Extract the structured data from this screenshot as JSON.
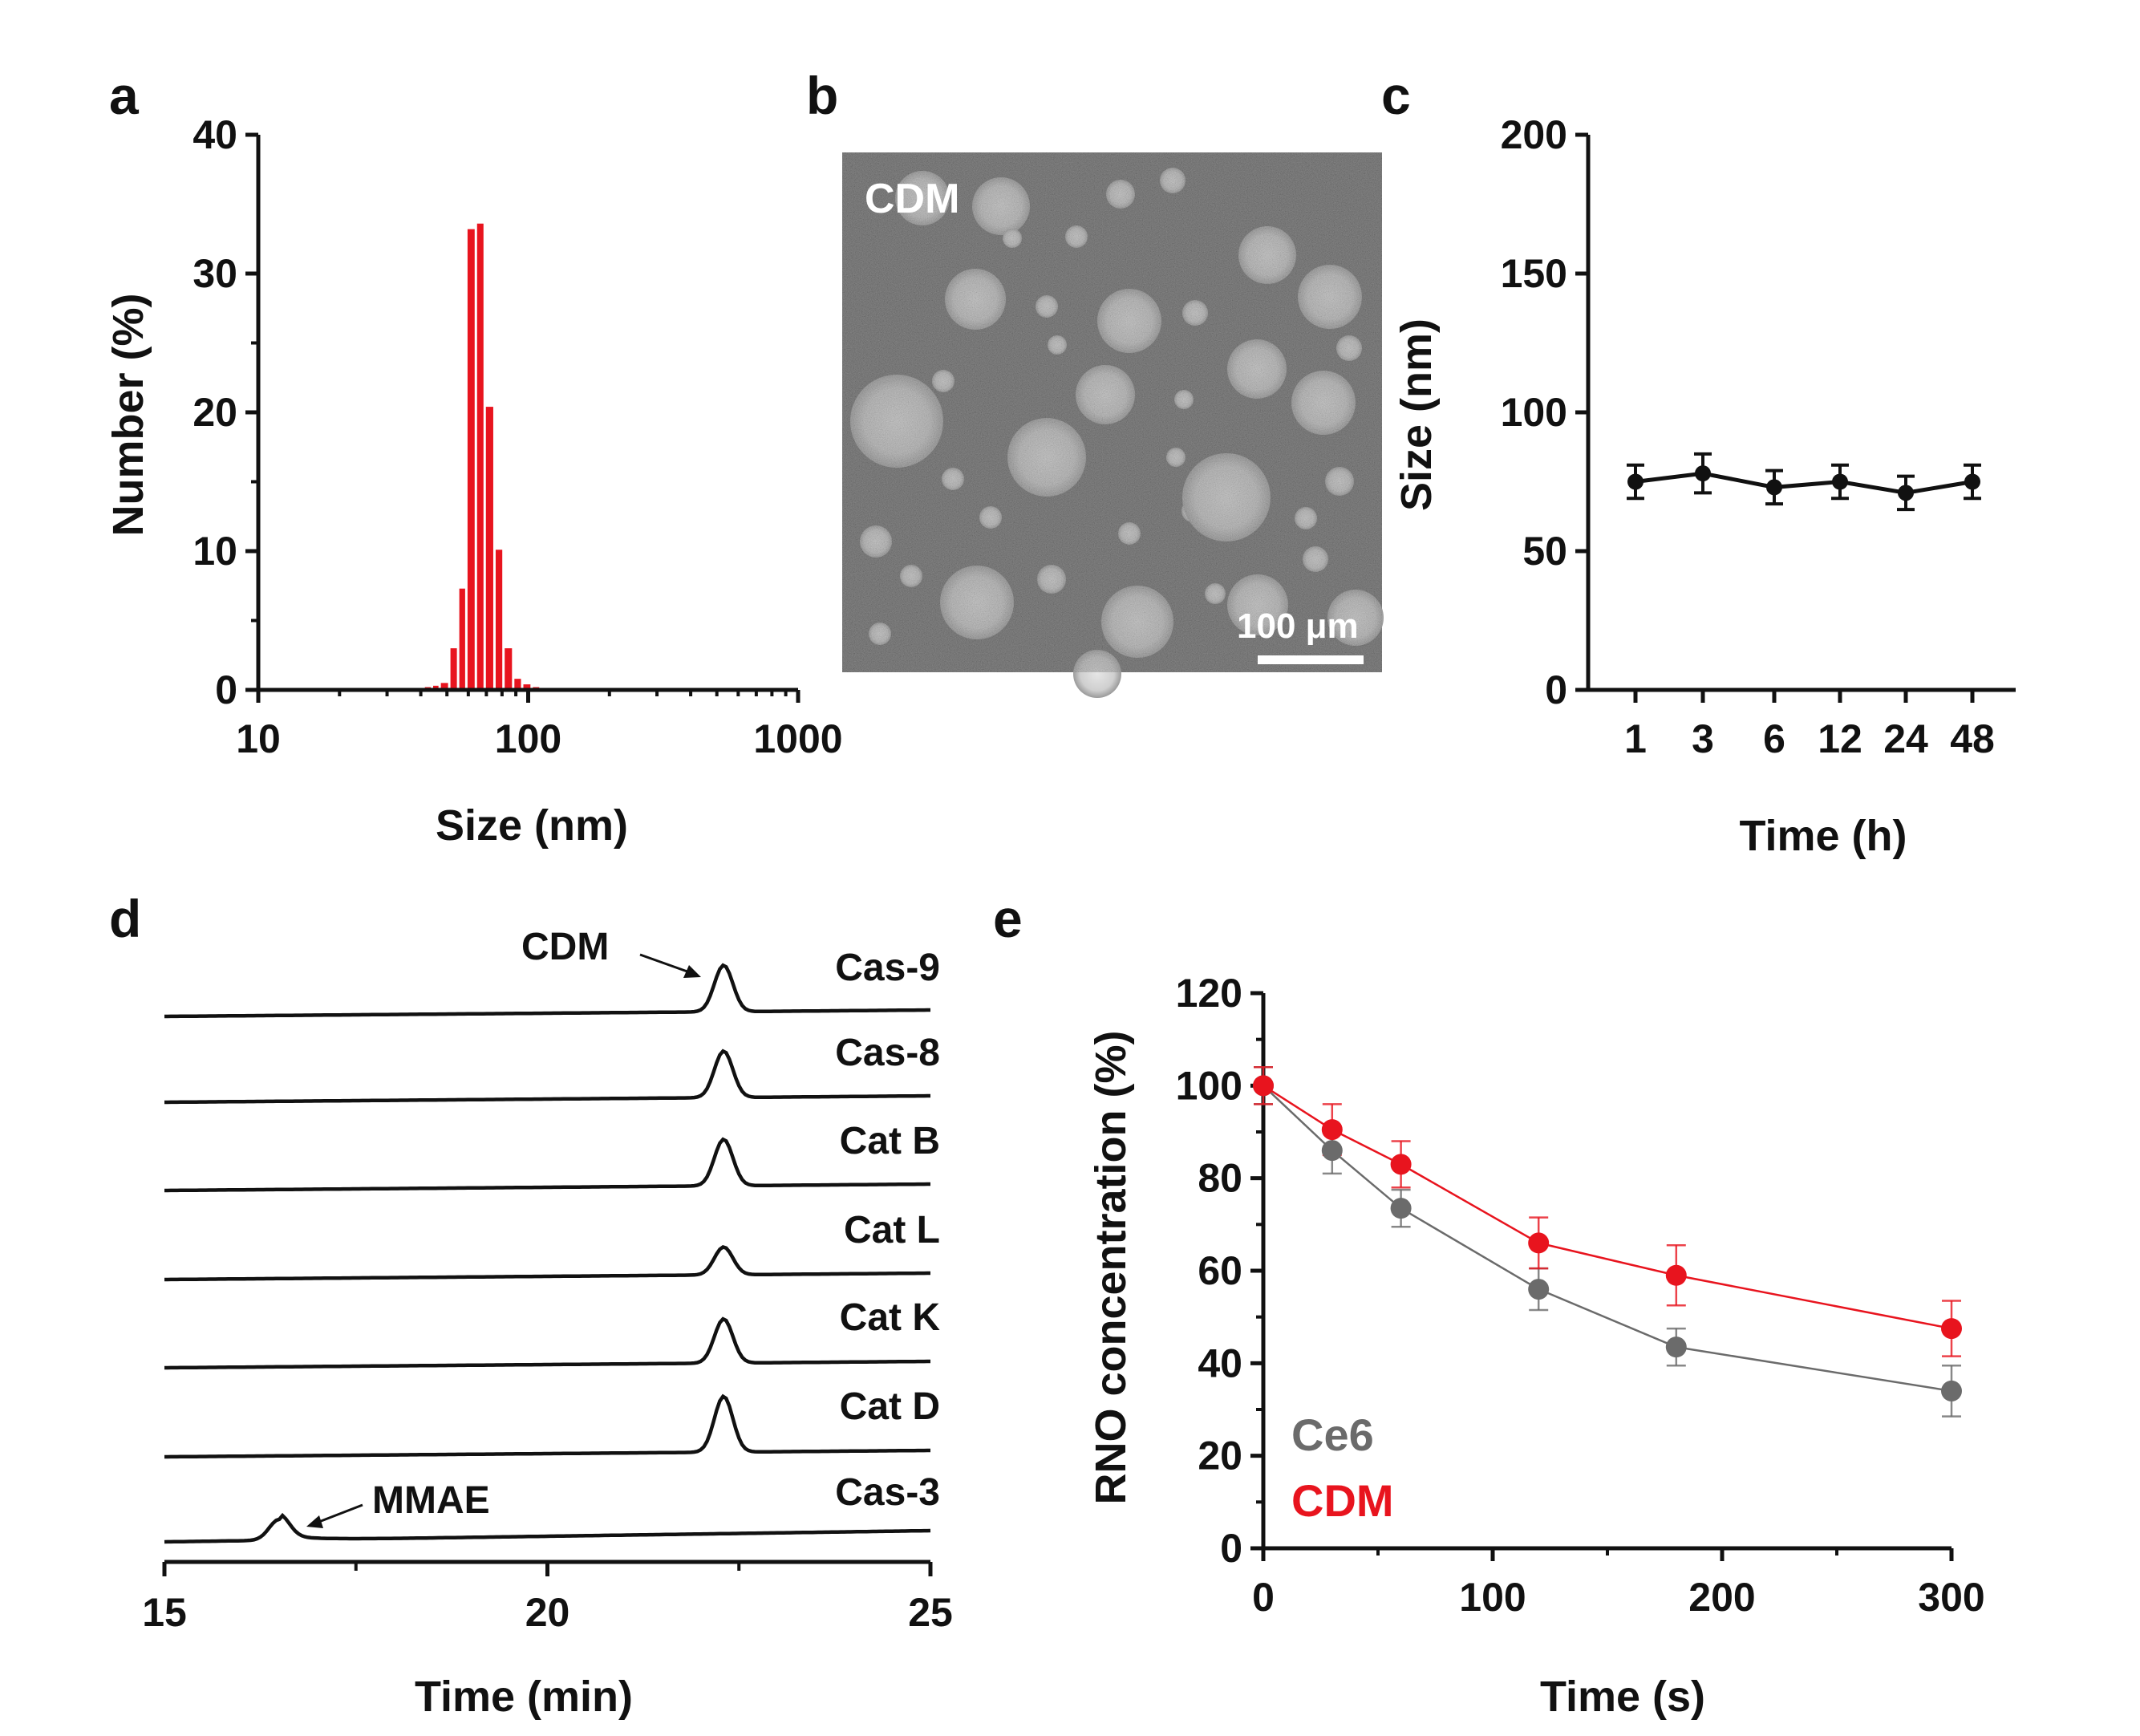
{
  "colors": {
    "red": "#e8141e",
    "grey": "#6b6b6b",
    "black": "#111111"
  },
  "chart_data": [
    {
      "panel": "a",
      "type": "bar",
      "xscale": "log",
      "xlabel": "Size (nm)",
      "ylabel": "Number (%)",
      "xlim": [
        10,
        1000
      ],
      "ylim": [
        0,
        40
      ],
      "xticks": [
        "10",
        "100",
        "1000"
      ],
      "yticks": [
        "0",
        "10",
        "20",
        "30",
        "40"
      ],
      "bar_color": "#e8141e",
      "bins": [
        35,
        38,
        41,
        44,
        47,
        51,
        55,
        59,
        64,
        69,
        75,
        81,
        88,
        95,
        103,
        111,
        120,
        130,
        140,
        151,
        163
      ],
      "values": [
        0.1,
        0.1,
        0.2,
        0.3,
        0.5,
        3,
        7.3,
        33.2,
        33.6,
        20.4,
        10.1,
        3,
        0.8,
        0.4,
        0.2,
        0.1,
        0.1,
        0.1,
        0.1,
        0.1,
        0.1
      ]
    },
    {
      "panel": "c",
      "type": "line",
      "xlabel": "Time (h)",
      "ylabel": "Size (nm)",
      "categories": [
        "1",
        "3",
        "6",
        "12",
        "24",
        "48"
      ],
      "values": [
        75,
        78,
        73,
        75,
        71,
        75
      ],
      "errors": [
        6,
        7,
        6,
        6,
        6,
        6
      ],
      "ylim": [
        0,
        200
      ],
      "yticks": [
        "0",
        "50",
        "100",
        "150",
        "200"
      ]
    },
    {
      "panel": "d",
      "type": "line",
      "xlabel": "Time (min)",
      "xlim": [
        15,
        25
      ],
      "xticks": [
        "15",
        "20",
        "25"
      ],
      "traces": [
        {
          "name": "Cas-9",
          "peak_time": 22.3,
          "peak_height": 1.0
        },
        {
          "name": "Cas-8",
          "peak_time": 22.3,
          "peak_height": 1.0
        },
        {
          "name": "Cat B",
          "peak_time": 22.3,
          "peak_height": 1.0
        },
        {
          "name": "Cat L",
          "peak_time": 22.3,
          "peak_height": 0.6
        },
        {
          "name": "Cat K",
          "peak_time": 22.3,
          "peak_height": 0.95
        },
        {
          "name": "Cat D",
          "peak_time": 22.3,
          "peak_height": 1.2
        },
        {
          "name": "Cas-3",
          "peak_time": 16.5,
          "peak_height": 0.45
        }
      ],
      "annotations": [
        {
          "text": "CDM",
          "trace": "Cas-9",
          "at_time": 22.3
        },
        {
          "text": "MMAE",
          "trace": "Cas-3",
          "at_time": 16.5
        }
      ]
    },
    {
      "panel": "e",
      "type": "line",
      "xlabel": "Time (s)",
      "ylabel": "RNO concentration (%)",
      "xlim": [
        0,
        300
      ],
      "ylim": [
        0,
        120
      ],
      "xticks": [
        "0",
        "100",
        "200",
        "300"
      ],
      "yticks": [
        "0",
        "20",
        "40",
        "60",
        "80",
        "100",
        "120"
      ],
      "x": [
        0,
        30,
        60,
        120,
        180,
        300
      ],
      "series": [
        {
          "name": "Ce6",
          "color": "#6b6b6b",
          "values": [
            100,
            86,
            73.5,
            56,
            43.5,
            34
          ],
          "errors": [
            4,
            5,
            4,
            4.5,
            4,
            5.5
          ]
        },
        {
          "name": "CDM",
          "color": "#e8141e",
          "values": [
            100,
            90.5,
            83,
            66,
            59,
            47.5
          ],
          "errors": [
            4,
            5.5,
            5,
            5.5,
            6.5,
            6
          ]
        }
      ],
      "legend": "bottom-left"
    }
  ],
  "panels": {
    "a": {
      "letter": "a"
    },
    "b": {
      "letter": "b",
      "label": "CDM",
      "scalebar": "100 μm"
    },
    "c": {
      "letter": "c"
    },
    "d": {
      "letter": "d"
    },
    "e": {
      "letter": "e"
    }
  }
}
